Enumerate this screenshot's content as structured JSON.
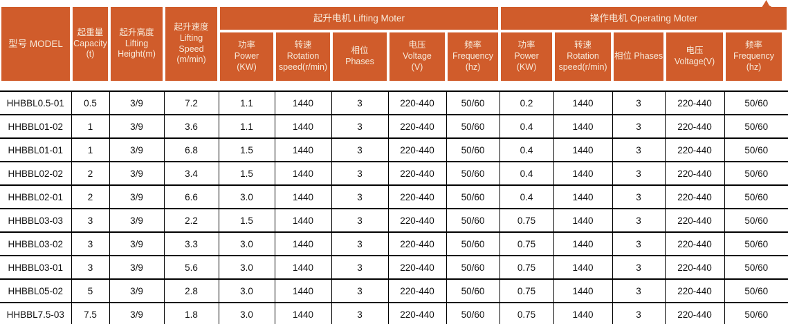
{
  "colors": {
    "header_bg": "#D05C2B",
    "header_text": "#F7EADA",
    "grid_line": "#000000",
    "body_text": "#111111"
  },
  "header": {
    "col_model": "型号 MODEL",
    "col_capacity": "起重量\nCapacity\n(t)",
    "col_lifting_height": "起升高度\nLifting\nHeight(m)",
    "col_lifting_speed": "起升速度\nLifting\nSpeed\n(m/min)",
    "group_lifting_motor": "起升电机 Lifting Moter",
    "group_operating_motor": "操作电机 Operating Moter",
    "lifting": {
      "power": "功率\nPower\n(KW)",
      "rotation": "转速\nRotation\nspeed(r/min)",
      "phases": "相位\nPhases",
      "voltage": "电压\nVoltage\n(V)",
      "frequency": "频率\nFrequency\n(hz)"
    },
    "operating": {
      "power": "功率\nPower\n(KW)",
      "rotation": "转速\nRotation\nspeed(r/min)",
      "phases": "相位 Phases",
      "voltage": "电压\nVoltage(V)",
      "frequency": "频率\nFrequency\n(hz)"
    }
  },
  "rows": [
    [
      "HHBBL0.5-01",
      "0.5",
      "3/9",
      "7.2",
      "1.1",
      "1440",
      "3",
      "220-440",
      "50/60",
      "0.2",
      "1440",
      "3",
      "220-440",
      "50/60"
    ],
    [
      "HHBBL01-02",
      "1",
      "3/9",
      "3.6",
      "1.1",
      "1440",
      "3",
      "220-440",
      "50/60",
      "0.4",
      "1440",
      "3",
      "220-440",
      "50/60"
    ],
    [
      "HHBBL01-01",
      "1",
      "3/9",
      "6.8",
      "1.5",
      "1440",
      "3",
      "220-440",
      "50/60",
      "0.4",
      "1440",
      "3",
      "220-440",
      "50/60"
    ],
    [
      "HHBBL02-02",
      "2",
      "3/9",
      "3.4",
      "1.5",
      "1440",
      "3",
      "220-440",
      "50/60",
      "0.4",
      "1440",
      "3",
      "220-440",
      "50/60"
    ],
    [
      "HHBBL02-01",
      "2",
      "3/9",
      "6.6",
      "3.0",
      "1440",
      "3",
      "220-440",
      "50/60",
      "0.4",
      "1440",
      "3",
      "220-440",
      "50/60"
    ],
    [
      "HHBBL03-03",
      "3",
      "3/9",
      "2.2",
      "1.5",
      "1440",
      "3",
      "220-440",
      "50/60",
      "0.75",
      "1440",
      "3",
      "220-440",
      "50/60"
    ],
    [
      "HHBBL03-02",
      "3",
      "3/9",
      "3.3",
      "3.0",
      "1440",
      "3",
      "220-440",
      "50/60",
      "0.75",
      "1440",
      "3",
      "220-440",
      "50/60"
    ],
    [
      "HHBBL03-01",
      "3",
      "3/9",
      "5.6",
      "3.0",
      "1440",
      "3",
      "220-440",
      "50/60",
      "0.75",
      "1440",
      "3",
      "220-440",
      "50/60"
    ],
    [
      "HHBBL05-02",
      "5",
      "3/9",
      "2.8",
      "3.0",
      "1440",
      "3",
      "220-440",
      "50/60",
      "0.75",
      "1440",
      "3",
      "220-440",
      "50/60"
    ],
    [
      "HHBBL7.5-03",
      "7.5",
      "3/9",
      "1.8",
      "3.0",
      "1440",
      "3",
      "220-440",
      "50/60",
      "0.75",
      "1440",
      "3",
      "220-440",
      "50/60"
    ]
  ]
}
